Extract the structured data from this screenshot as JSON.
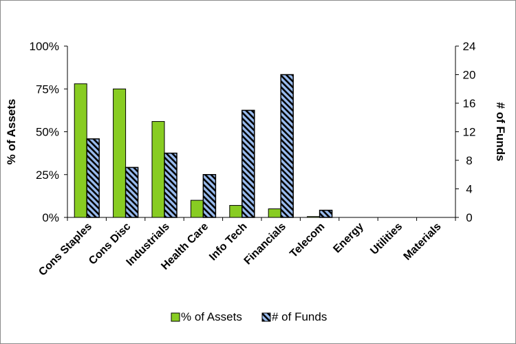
{
  "chart_data": {
    "type": "bar",
    "title": "",
    "categories": [
      "Cons Staples",
      "Cons Disc",
      "Industrials",
      "Health Care",
      "Info Tech",
      "Financials",
      "Telecom",
      "Energy",
      "Utilities",
      "Materials"
    ],
    "series": [
      {
        "name": "% of Assets",
        "axis": "left",
        "values": [
          78,
          75,
          56,
          10,
          7,
          5,
          0.5,
          0,
          0,
          0
        ],
        "color": "#88cc22",
        "pattern": "solid"
      },
      {
        "name": "# of Funds",
        "axis": "right",
        "values": [
          11,
          7,
          9,
          6,
          15,
          20,
          1,
          0,
          0,
          0
        ],
        "color": "#99bbee",
        "pattern": "diagonal-stripes"
      }
    ],
    "ylabel_left": "% of Assets",
    "ylabel_right": "# of Funds",
    "ylim_left": [
      0,
      100
    ],
    "ylim_right": [
      0,
      24
    ],
    "yticks_left": [
      "0%",
      "25%",
      "50%",
      "75%",
      "100%"
    ],
    "yticks_right": [
      "0",
      "4",
      "8",
      "12",
      "16",
      "20",
      "24"
    ],
    "grid": false,
    "legend": "bottom"
  }
}
